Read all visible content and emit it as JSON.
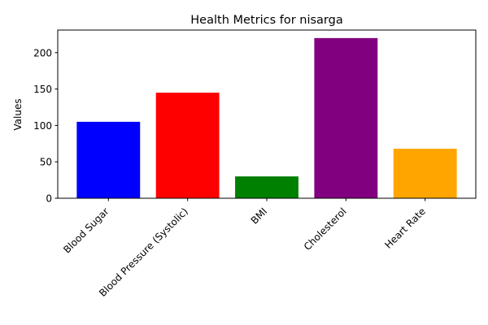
{
  "chart_data": {
    "type": "bar",
    "title": "Health Metrics for nisarga",
    "xlabel": "",
    "ylabel": "Values",
    "categories": [
      "Blood Sugar",
      "Blood Pressure (Systolic)",
      "BMI",
      "Cholesterol",
      "Heart Rate"
    ],
    "values": [
      105,
      145,
      30,
      220,
      68
    ],
    "colors": [
      "#0000ff",
      "#ff0000",
      "#008000",
      "#800080",
      "#ffa500"
    ],
    "ylim": [
      0,
      231
    ],
    "yticks": [
      0,
      50,
      100,
      150,
      200
    ],
    "grid": false,
    "legend": false
  }
}
